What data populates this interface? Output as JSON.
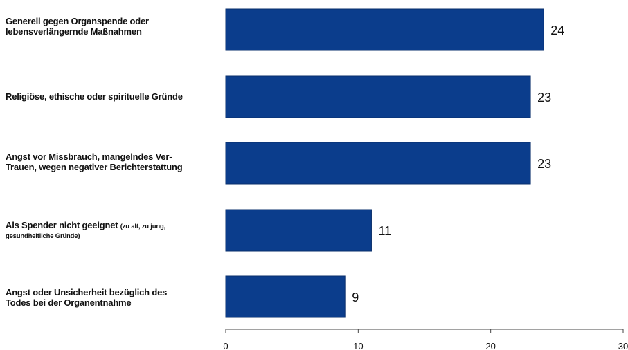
{
  "chart_data": {
    "type": "bar",
    "orientation": "horizontal",
    "categories": [
      "Generell gegen Organspende oder lebensverlängernde Maßnahmen",
      "Religiöse, ethische oder spirituelle Gründe",
      "Angst vor Missbrauch, mangelndes Ver-Trauen, wegen negativer Berichterstattung",
      "Als Spender nicht geeignet (zu alt, zu jung, gesundheitliche Gründe)",
      "Angst oder Unsicherheit bezüglich des Todes bei der Organentnahme"
    ],
    "values": [
      24,
      23,
      23,
      11,
      9
    ],
    "xlim": [
      0,
      30
    ],
    "xticks": [
      0,
      10,
      20,
      30
    ],
    "grid": false,
    "bar_color": "#0b3d8c",
    "title": "",
    "xlabel": "",
    "ylabel": ""
  },
  "labels": [
    {
      "lines": [
        "Generell gegen Organspende oder",
        "lebensverlängernde Maßnahmen"
      ]
    },
    {
      "lines": [
        "Religiöse, ethische oder spirituelle Gründe"
      ]
    },
    {
      "lines": [
        "Angst vor Missbrauch, mangelndes Ver-",
        "Trauen, wegen negativer Berichterstattung"
      ]
    },
    {
      "main": "Als Spender nicht geeignet ",
      "sub1": "(zu alt, zu jung,",
      "sub2": "gesundheitliche  Gründe)"
    },
    {
      "lines": [
        "Angst oder Unsicherheit bezüglich des",
        "Todes bei der Organentnahme"
      ]
    }
  ]
}
